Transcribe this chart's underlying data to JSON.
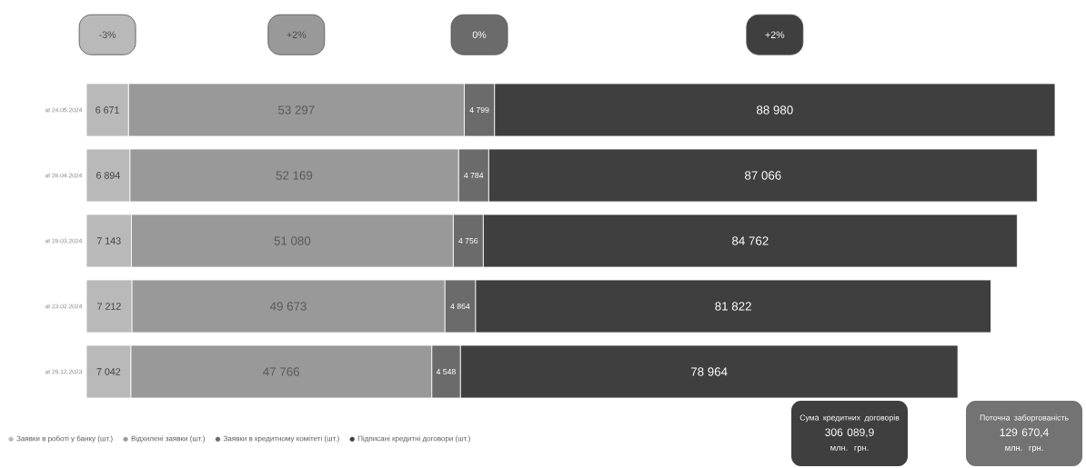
{
  "chart_data": {
    "type": "bar",
    "orientation": "horizontal",
    "stacked": true,
    "categories": [
      "at 24.05.2024",
      "at 26.04.2024",
      "at 29.03.2024",
      "at 23.02.2024",
      "at 29.12.2023"
    ],
    "series": [
      {
        "name": "Заявки в роботі у банку (шт.)",
        "color": "#b9b9b9",
        "values": [
          6671,
          6894,
          7143,
          7212,
          7042
        ],
        "value_labels": [
          "6 671",
          "6 894",
          "7 143",
          "7 212",
          "7 042"
        ]
      },
      {
        "name": "Відхилені заявки (шт.)",
        "color": "#999999",
        "values": [
          53297,
          52169,
          51080,
          49673,
          47766
        ],
        "value_labels": [
          "53 297",
          "52 169",
          "51 080",
          "49 673",
          "47 766"
        ]
      },
      {
        "name": "Заявки в кредитному комітеті (шт.)",
        "color": "#6b6b6b",
        "values": [
          4799,
          4784,
          4756,
          4864,
          4548
        ],
        "value_labels": [
          "4 799",
          "4 784",
          "4 756",
          "4 864",
          "4 548"
        ]
      },
      {
        "name": "Підписані кредитні договори (шт.)",
        "color": "#3f3f3f",
        "values": [
          88980,
          87066,
          84762,
          81822,
          78964
        ],
        "value_labels": [
          "88 980",
          "87 066",
          "84 762",
          "81 822",
          "78 964"
        ]
      }
    ],
    "annotations": [
      "-3%",
      "+2%",
      "0%",
      "+2%",
      "Сума кредитних договорів",
      "306 089,9",
      "млн. грн.",
      "Поточна заборгованість",
      "129 670,4",
      "млн. грн."
    ],
    "legend": "bottom left"
  }
}
